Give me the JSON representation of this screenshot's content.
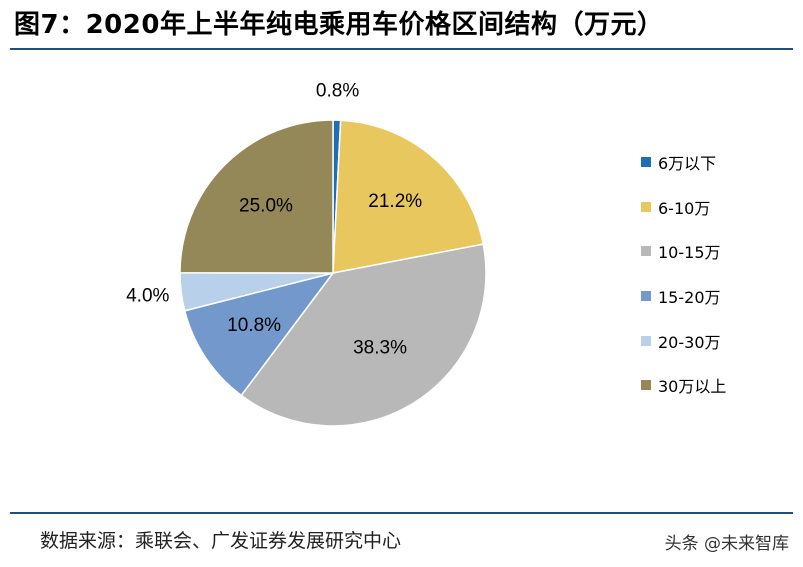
{
  "figure": {
    "title": "图7：2020年上半年纯电乘用车价格区间结构（万元）",
    "source": "数据来源：乘联会、广发证券发展研究中心",
    "watermark": "头条 @未来智库"
  },
  "chart_data": {
    "type": "pie",
    "title": "图7：2020年上半年纯电乘用车价格区间结构（万元）",
    "categories": [
      "6万以下",
      "6-10万",
      "10-15万",
      "15-20万",
      "20-30万",
      "30万以上"
    ],
    "values": [
      0.8,
      21.2,
      38.3,
      10.8,
      4.0,
      25.0
    ],
    "labels": [
      "0.8%",
      "21.2%",
      "38.3%",
      "10.8%",
      "4.0%",
      "25.0%"
    ],
    "colors": [
      "#1f6fb5",
      "#e9c75f",
      "#b8b8b8",
      "#7399cc",
      "#b9d0ea",
      "#948858"
    ],
    "legend_position": "right",
    "start_angle": "top",
    "direction": "clockwise"
  }
}
